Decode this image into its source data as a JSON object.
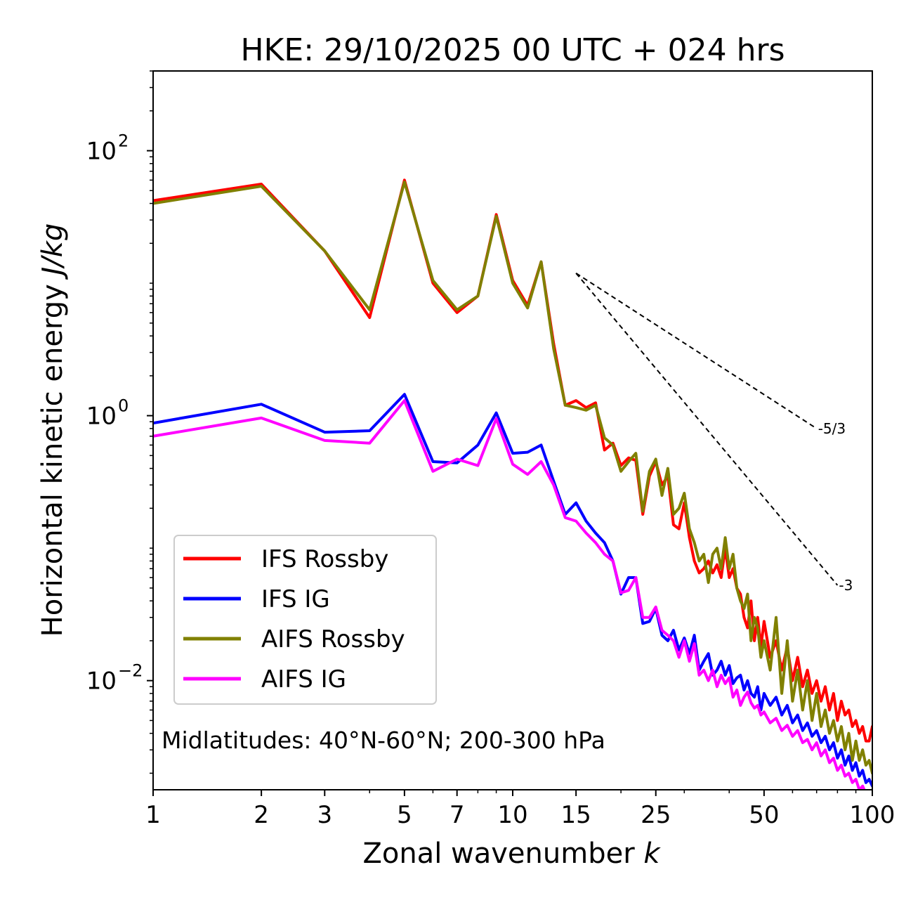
{
  "chart_data": {
    "type": "line",
    "title": "HKE: 29/10/2025 00 UTC + 024 hrs",
    "xlabel": "Zonal wavenumber",
    "xlabel_var": "k",
    "ylabel": "Horizontal kinetic energy",
    "ylabel_unit": "J/kg",
    "xscale": "log",
    "yscale": "log",
    "xlim": [
      1,
      100
    ],
    "ylim": [
      0.0015,
      400
    ],
    "x_ticks": [
      {
        "value": 1,
        "label": "1"
      },
      {
        "value": 2,
        "label": "2"
      },
      {
        "value": 3,
        "label": "3"
      },
      {
        "value": 5,
        "label": "5"
      },
      {
        "value": 7,
        "label": "7"
      },
      {
        "value": 10,
        "label": "10"
      },
      {
        "value": 15,
        "label": "15"
      },
      {
        "value": 25,
        "label": "25"
      },
      {
        "value": 50,
        "label": "50"
      },
      {
        "value": 100,
        "label": "100"
      }
    ],
    "y_ticks": [
      {
        "value": 100,
        "base": "10",
        "exp": "2"
      },
      {
        "value": 1,
        "base": "10",
        "exp": "0"
      },
      {
        "value": 0.01,
        "base": "10",
        "exp": "−2"
      }
    ],
    "annotation": "Midlatitudes: 40°N-60°N; 200-300 hPa",
    "legend_position": "lower-left",
    "reference_slopes": [
      {
        "label": "-5/3",
        "x": [
          15,
          70
        ],
        "y": [
          11.9,
          0.8
        ]
      },
      {
        "label": "-3",
        "x": [
          15,
          80
        ],
        "y": [
          11.9,
          0.0525
        ]
      }
    ],
    "series": [
      {
        "name": "IFS Rossby",
        "color": "#ff0000",
        "x": [
          1,
          2,
          3,
          4,
          5,
          6,
          7,
          8,
          9,
          10,
          11,
          12,
          13,
          14,
          15,
          16,
          17,
          18,
          19,
          20,
          21,
          22,
          23,
          24,
          25,
          26,
          27,
          28,
          29,
          30,
          31,
          32,
          33,
          34,
          35,
          36,
          37,
          38,
          39,
          40,
          41,
          42,
          43,
          44,
          45,
          46,
          47,
          48,
          49,
          50,
          52,
          54,
          56,
          58,
          60,
          62,
          64,
          66,
          68,
          70,
          72,
          74,
          76,
          78,
          80,
          82,
          84,
          86,
          88,
          90,
          92,
          94,
          96,
          98,
          100
        ],
        "y": [
          42,
          56,
          17.5,
          5.5,
          60,
          10,
          6,
          8,
          33,
          10.5,
          6.8,
          14.5,
          3.5,
          1.2,
          1.3,
          1.15,
          1.25,
          0.55,
          0.62,
          0.42,
          0.48,
          0.46,
          0.18,
          0.35,
          0.45,
          0.3,
          0.35,
          0.15,
          0.14,
          0.22,
          0.12,
          0.08,
          0.065,
          0.07,
          0.08,
          0.065,
          0.075,
          0.06,
          0.1,
          0.06,
          0.07,
          0.05,
          0.045,
          0.03,
          0.025,
          0.04,
          0.02,
          0.03,
          0.018,
          0.028,
          0.015,
          0.02,
          0.012,
          0.018,
          0.01,
          0.015,
          0.009,
          0.012,
          0.008,
          0.01,
          0.007,
          0.009,
          0.006,
          0.008,
          0.005,
          0.007,
          0.0055,
          0.006,
          0.0045,
          0.005,
          0.004,
          0.0045,
          0.0035,
          0.0035,
          0.0045
        ]
      },
      {
        "name": "IFS IG",
        "color": "#0000ff",
        "x": [
          1,
          2,
          3,
          4,
          5,
          6,
          7,
          8,
          9,
          10,
          11,
          12,
          13,
          14,
          15,
          16,
          17,
          18,
          19,
          20,
          21,
          22,
          23,
          24,
          25,
          26,
          27,
          28,
          29,
          30,
          31,
          32,
          33,
          34,
          35,
          36,
          37,
          38,
          39,
          40,
          41,
          42,
          43,
          44,
          45,
          46,
          47,
          48,
          49,
          50,
          52,
          54,
          56,
          58,
          60,
          62,
          64,
          66,
          68,
          70,
          72,
          74,
          76,
          78,
          80,
          82,
          84,
          86,
          88,
          90,
          92,
          94,
          96,
          98,
          100
        ],
        "y": [
          0.88,
          1.22,
          0.75,
          0.77,
          1.45,
          0.45,
          0.44,
          0.6,
          1.05,
          0.52,
          0.53,
          0.6,
          0.32,
          0.18,
          0.22,
          0.16,
          0.13,
          0.11,
          0.08,
          0.045,
          0.06,
          0.06,
          0.027,
          0.028,
          0.035,
          0.022,
          0.02,
          0.024,
          0.017,
          0.021,
          0.016,
          0.022,
          0.012,
          0.014,
          0.016,
          0.011,
          0.012,
          0.014,
          0.011,
          0.013,
          0.0095,
          0.0105,
          0.011,
          0.0085,
          0.01,
          0.008,
          0.0075,
          0.009,
          0.006,
          0.008,
          0.0065,
          0.0075,
          0.0055,
          0.0065,
          0.0048,
          0.0055,
          0.0042,
          0.0048,
          0.0038,
          0.0042,
          0.0034,
          0.0038,
          0.003,
          0.0034,
          0.0026,
          0.003,
          0.0023,
          0.0027,
          0.0021,
          0.0024,
          0.0019,
          0.0021,
          0.0017,
          0.0018,
          0.0016
        ]
      },
      {
        "name": "AIFS Rossby",
        "color": "#808000",
        "x": [
          1,
          2,
          3,
          4,
          5,
          6,
          7,
          8,
          9,
          10,
          11,
          12,
          13,
          14,
          15,
          16,
          17,
          18,
          19,
          20,
          21,
          22,
          23,
          24,
          25,
          26,
          27,
          28,
          29,
          30,
          31,
          32,
          33,
          34,
          35,
          36,
          37,
          38,
          39,
          40,
          41,
          42,
          43,
          44,
          45,
          46,
          47,
          48,
          49,
          50,
          52,
          54,
          56,
          58,
          60,
          62,
          64,
          66,
          68,
          70,
          72,
          74,
          76,
          78,
          80,
          82,
          84,
          86,
          88,
          90,
          92,
          94,
          96,
          98,
          100
        ],
        "y": [
          40,
          54,
          17.5,
          6.3,
          58,
          10.5,
          6.3,
          8,
          32,
          10,
          6.5,
          14.5,
          3.2,
          1.2,
          1.15,
          1.1,
          1.2,
          0.68,
          0.6,
          0.38,
          0.45,
          0.52,
          0.19,
          0.38,
          0.47,
          0.25,
          0.4,
          0.18,
          0.2,
          0.26,
          0.14,
          0.11,
          0.08,
          0.09,
          0.055,
          0.09,
          0.1,
          0.07,
          0.12,
          0.07,
          0.09,
          0.05,
          0.04,
          0.035,
          0.045,
          0.02,
          0.03,
          0.025,
          0.015,
          0.02,
          0.012,
          0.03,
          0.008,
          0.02,
          0.007,
          0.012,
          0.006,
          0.01,
          0.005,
          0.008,
          0.0045,
          0.006,
          0.004,
          0.005,
          0.0035,
          0.0045,
          0.003,
          0.004,
          0.0025,
          0.0035,
          0.0025,
          0.003,
          0.0023,
          0.0025,
          0.002
        ]
      },
      {
        "name": "AIFS IG",
        "color": "#ff00ff",
        "x": [
          1,
          2,
          3,
          4,
          5,
          6,
          7,
          8,
          9,
          10,
          11,
          12,
          13,
          14,
          15,
          16,
          17,
          18,
          19,
          20,
          21,
          22,
          23,
          24,
          25,
          26,
          27,
          28,
          29,
          30,
          31,
          32,
          33,
          34,
          35,
          36,
          37,
          38,
          39,
          40,
          41,
          42,
          43,
          44,
          45,
          46,
          47,
          48,
          49,
          50,
          52,
          54,
          56,
          58,
          60,
          62,
          64,
          66,
          68,
          70,
          72,
          74,
          76,
          78,
          80,
          82,
          84,
          86,
          88,
          90,
          92,
          94,
          96,
          98,
          100
        ],
        "y": [
          0.7,
          0.96,
          0.65,
          0.62,
          1.3,
          0.38,
          0.47,
          0.42,
          0.95,
          0.43,
          0.36,
          0.45,
          0.3,
          0.17,
          0.16,
          0.13,
          0.11,
          0.09,
          0.08,
          0.046,
          0.048,
          0.06,
          0.03,
          0.03,
          0.036,
          0.024,
          0.022,
          0.02,
          0.015,
          0.02,
          0.014,
          0.019,
          0.011,
          0.012,
          0.01,
          0.012,
          0.009,
          0.011,
          0.0095,
          0.0105,
          0.0075,
          0.0085,
          0.0065,
          0.0075,
          0.0082,
          0.0068,
          0.0062,
          0.0065,
          0.0055,
          0.0058,
          0.0048,
          0.0052,
          0.0042,
          0.0046,
          0.0038,
          0.0042,
          0.0034,
          0.0036,
          0.003,
          0.0034,
          0.0027,
          0.003,
          0.0024,
          0.0026,
          0.0021,
          0.0023,
          0.0019,
          0.002,
          0.0017,
          0.0018,
          0.0015,
          0.0016,
          0.0014,
          0.0014,
          0.0012
        ]
      }
    ]
  }
}
